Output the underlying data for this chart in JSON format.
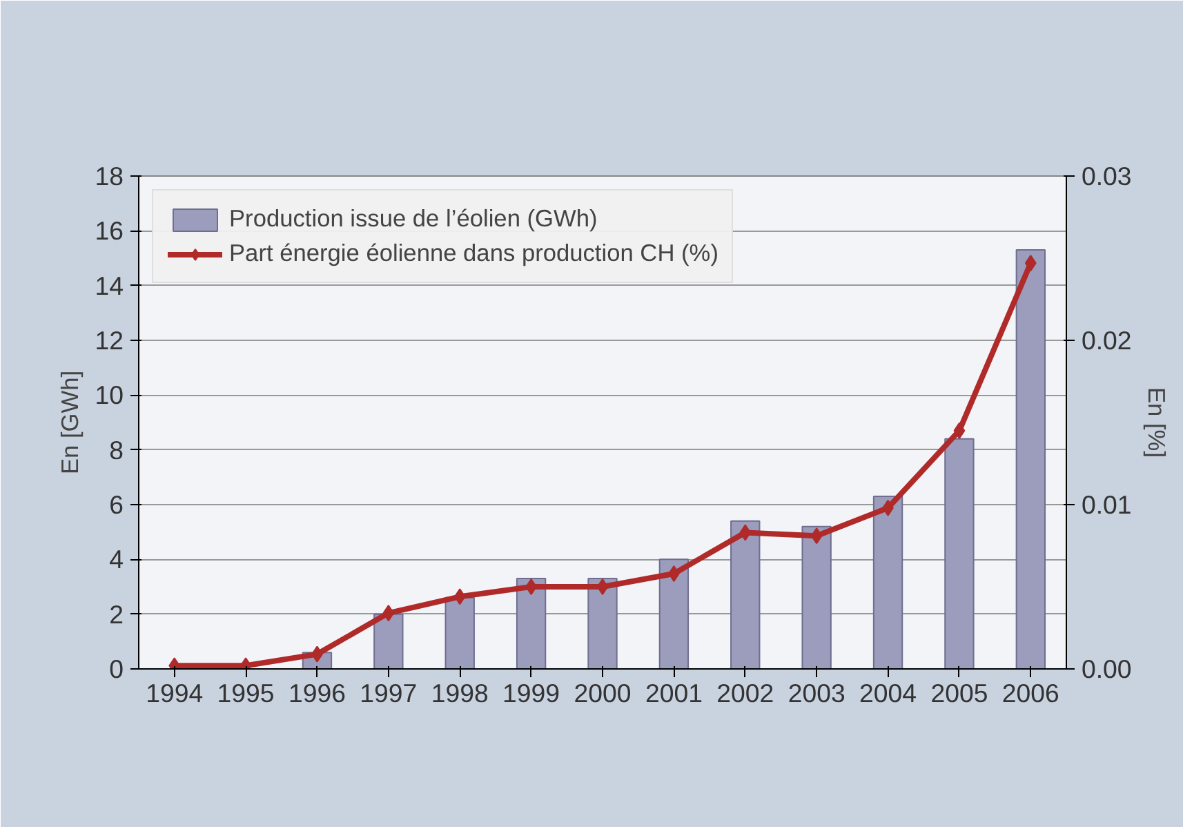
{
  "chart_data": {
    "type": "bar",
    "categories": [
      "1994",
      "1995",
      "1996",
      "1997",
      "1998",
      "1999",
      "2000",
      "2001",
      "2002",
      "2003",
      "2004",
      "2005",
      "2006"
    ],
    "ylabel": "En [GWh]",
    "y2label": "En [%]",
    "ylim": [
      0,
      18
    ],
    "yticks": [
      0,
      2,
      4,
      6,
      8,
      10,
      12,
      14,
      16,
      18
    ],
    "y2lim": [
      0,
      0.03
    ],
    "y2ticks": [
      {
        "value": 0,
        "label": "0.00"
      },
      {
        "value": 0.01,
        "label": "0.01"
      },
      {
        "value": 0.02,
        "label": "0.02"
      },
      {
        "value": 0.03,
        "label": "0.03"
      }
    ],
    "grid": "y",
    "legend": "top left",
    "marker": "diamond",
    "line_style": "solid",
    "series": [
      {
        "name": "Production issue de l’éolien (GWh)",
        "color": "#9c9cbc",
        "values": [
          null,
          null,
          0.6,
          2.0,
          2.6,
          3.3,
          3.3,
          4.0,
          5.4,
          5.2,
          6.3,
          8.4,
          15.3
        ]
      },
      {
        "name": "Part énergie éolienne dans production CH (%)",
        "type": "line",
        "axis": "y2",
        "color": "#b02a2a",
        "values": [
          0.0002,
          0.0002,
          0.0009,
          0.0034,
          0.0044,
          0.005,
          0.005,
          0.0058,
          0.0083,
          0.0081,
          0.0098,
          0.0145,
          0.0247
        ]
      }
    ]
  }
}
